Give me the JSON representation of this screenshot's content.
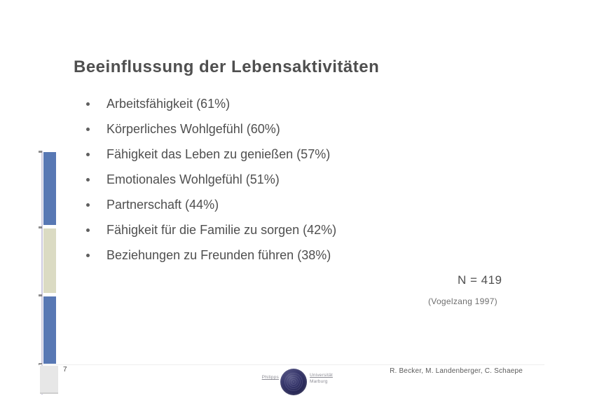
{
  "slide": {
    "title": "Beeinflussung der Lebensaktivitäten",
    "bullets": [
      "Arbeitsfähigkeit (61%)",
      "Körperliches Wohlgefühl (60%)",
      "Fähigkeit das Leben zu genießen (57%)",
      "Emotionales Wohlgefühl (51%)",
      "Partnerschaft (44%)",
      "Fähigkeit für die Familie zu sorgen (42%)",
      "Beziehungen zu Freunden führen (38%)"
    ],
    "annotation": {
      "sample_size": "N = 419",
      "citation": "(Vogelzang 1997)"
    },
    "footer": {
      "page_number": "7",
      "authors": "R. Becker, M. Landenberger, C. Schaepe"
    },
    "logo": {
      "left_text": "Philipps",
      "right_text_line1": "Universität",
      "right_text_line2": "Marburg"
    },
    "colors": {
      "accent_blue": "#5878b4",
      "accent_beige": "#dbdbc3",
      "accent_gray": "#e7e7e7",
      "stripe_lavender": "#cdcadf",
      "seal_navy": "#24244f",
      "text_primary": "#4f4f4f",
      "text_footer": "#5a5a5a"
    }
  }
}
